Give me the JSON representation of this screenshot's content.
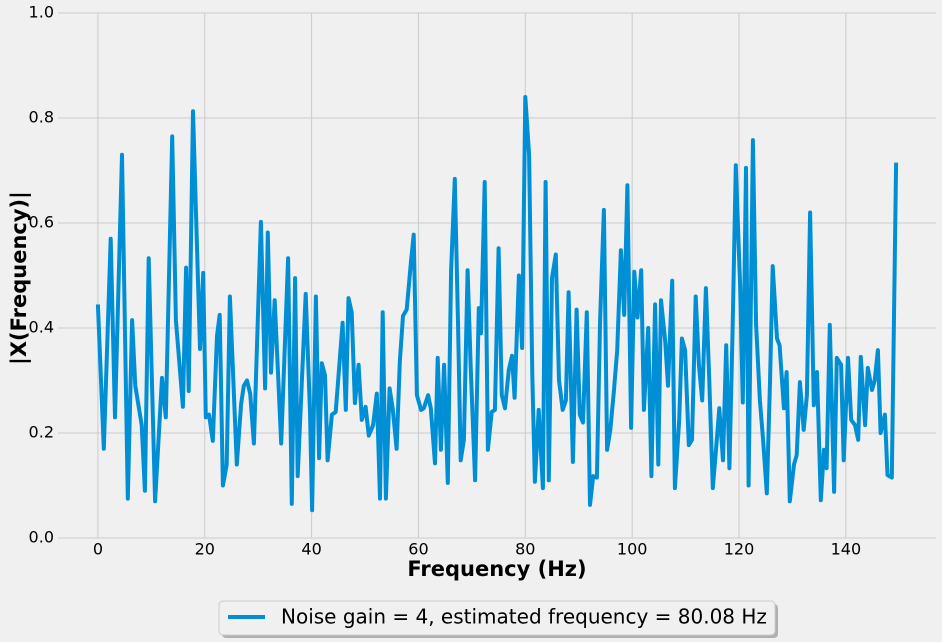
{
  "chart_data": {
    "type": "line",
    "xlabel": "Frequency (Hz)",
    "ylabel": "|X(Frequency)|",
    "x": [
      0,
      1.1,
      2.4,
      3.2,
      4.5,
      5.6,
      6.4,
      7,
      8.2,
      8.8,
      9.5,
      10.7,
      12,
      12.7,
      13.9,
      14.6,
      15.9,
      16.5,
      17,
      17.8,
      19.1,
      19.7,
      20.2,
      20.8,
      21.5,
      22.3,
      22.8,
      23.4,
      24.1,
      24.7,
      26,
      26.8,
      27.3,
      27.9,
      28.5,
      29.2,
      30.5,
      31.3,
      31.8,
      32.4,
      33.1,
      34.3,
      35.6,
      36.3,
      36.9,
      37.4,
      38.9,
      39.7,
      40.1,
      40.8,
      41.4,
      41.9,
      42.5,
      43,
      43.8,
      44.5,
      45.8,
      46.4,
      46.9,
      47.5,
      48.1,
      48.8,
      49.4,
      50.1,
      50.7,
      51.5,
      52.2,
      52.8,
      53.3,
      53.9,
      54.6,
      55.2,
      55.9,
      56.5,
      57.1,
      57.8,
      58.6,
      59.1,
      59.7,
      60.5,
      61,
      61.8,
      62.3,
      63.1,
      63.6,
      64.2,
      64.8,
      65.5,
      66.1,
      66.8,
      67.4,
      67.9,
      68.5,
      69.2,
      69.8,
      70.6,
      71.3,
      71.7,
      72.4,
      73,
      73.7,
      74.3,
      75,
      75.6,
      76.2,
      76.9,
      77.5,
      78,
      78.8,
      79.4,
      80,
      80.7,
      81.3,
      81.8,
      82.5,
      83.3,
      83.8,
      84.4,
      85,
      85.7,
      86.3,
      87,
      87.6,
      88.1,
      88.9,
      89.6,
      90.2,
      90.8,
      91.5,
      92.1,
      92.7,
      93.4,
      94,
      94.7,
      95.3,
      95.9,
      96.6,
      97.2,
      97.9,
      98.5,
      99.1,
      99.8,
      100.4,
      101,
      101.7,
      102.2,
      103,
      103.6,
      104.3,
      104.9,
      105.4,
      106.2,
      106.7,
      107.5,
      108,
      108.8,
      109.3,
      109.9,
      110.6,
      111.2,
      111.9,
      112.5,
      113.1,
      113.8,
      114.4,
      115.1,
      115.7,
      116.3,
      117,
      117.6,
      118.2,
      118.8,
      119.4,
      120.2,
      120.7,
      121.3,
      121.8,
      122.6,
      123.2,
      123.9,
      124.5,
      125.2,
      125.8,
      126.3,
      127.1,
      127.6,
      128.4,
      128.9,
      129.5,
      130.3,
      130.8,
      131.4,
      132.1,
      132.7,
      133.3,
      134,
      134.6,
      135.3,
      135.9,
      136.4,
      137,
      137.8,
      138.3,
      139.1,
      139.6,
      140.4,
      141,
      141.7,
      142.3,
      142.8,
      143.6,
      144.1,
      144.9,
      145.4,
      146,
      146.5,
      147.3,
      147.8,
      148.6,
      149.4
    ],
    "series": [
      {
        "name": "Noise gain = 4, estimated frequency = 80.08 Hz",
        "color": "#008fd5",
        "values": [
          0.445,
          0.17,
          0.57,
          0.23,
          0.73,
          0.075,
          0.415,
          0.29,
          0.215,
          0.09,
          0.533,
          0.07,
          0.305,
          0.23,
          0.765,
          0.415,
          0.25,
          0.515,
          0.28,
          0.813,
          0.36,
          0.505,
          0.23,
          0.235,
          0.185,
          0.385,
          0.425,
          0.1,
          0.14,
          0.46,
          0.14,
          0.255,
          0.29,
          0.3,
          0.275,
          0.18,
          0.602,
          0.285,
          0.582,
          0.315,
          0.453,
          0.18,
          0.533,
          0.065,
          0.495,
          0.118,
          0.465,
          0.24,
          0.053,
          0.46,
          0.152,
          0.333,
          0.31,
          0.148,
          0.235,
          0.24,
          0.41,
          0.244,
          0.457,
          0.43,
          0.257,
          0.33,
          0.225,
          0.25,
          0.195,
          0.215,
          0.275,
          0.075,
          0.43,
          0.075,
          0.285,
          0.245,
          0.17,
          0.335,
          0.423,
          0.435,
          0.527,
          0.578,
          0.272,
          0.244,
          0.247,
          0.272,
          0.247,
          0.142,
          0.343,
          0.168,
          0.33,
          0.105,
          0.51,
          0.684,
          0.41,
          0.148,
          0.187,
          0.51,
          0.32,
          0.11,
          0.438,
          0.39,
          0.678,
          0.168,
          0.24,
          0.244,
          0.552,
          0.272,
          0.247,
          0.32,
          0.347,
          0.267,
          0.5,
          0.362,
          0.84,
          0.73,
          0.31,
          0.107,
          0.244,
          0.095,
          0.678,
          0.11,
          0.495,
          0.54,
          0.3,
          0.244,
          0.262,
          0.468,
          0.145,
          0.435,
          0.235,
          0.22,
          0.43,
          0.063,
          0.118,
          0.115,
          0.415,
          0.625,
          0.168,
          0.206,
          0.282,
          0.358,
          0.548,
          0.425,
          0.672,
          0.21,
          0.507,
          0.42,
          0.51,
          0.244,
          0.4,
          0.118,
          0.445,
          0.14,
          0.453,
          0.373,
          0.29,
          0.49,
          0.095,
          0.225,
          0.38,
          0.358,
          0.177,
          0.187,
          0.46,
          0.33,
          0.262,
          0.476,
          0.31,
          0.095,
          0.168,
          0.247,
          0.148,
          0.367,
          0.133,
          0.396,
          0.71,
          0.482,
          0.258,
          0.705,
          0.1,
          0.758,
          0.406,
          0.262,
          0.187,
          0.085,
          0.297,
          0.518,
          0.38,
          0.367,
          0.247,
          0.316,
          0.07,
          0.14,
          0.158,
          0.297,
          0.206,
          0.272,
          0.62,
          0.253,
          0.316,
          0.072,
          0.168,
          0.133,
          0.406,
          0.088,
          0.343,
          0.33,
          0.148,
          0.343,
          0.225,
          0.215,
          0.187,
          0.345,
          0.215,
          0.324,
          0.282,
          0.3,
          0.358,
          0.2,
          0.235,
          0.12,
          0.115,
          0.715
        ]
      }
    ],
    "xlim": [
      -7.47,
      156.87
    ],
    "xticks": [
      0,
      20,
      40,
      60,
      80,
      100,
      120,
      140
    ],
    "ylim": [
      0,
      1
    ],
    "yticks": [
      {
        "value": 0,
        "label": "0.0"
      },
      0.2,
      0.4,
      0.6,
      0.8,
      {
        "value": 1,
        "label": "1.0"
      }
    ],
    "grid": true,
    "legend": "bottom"
  }
}
